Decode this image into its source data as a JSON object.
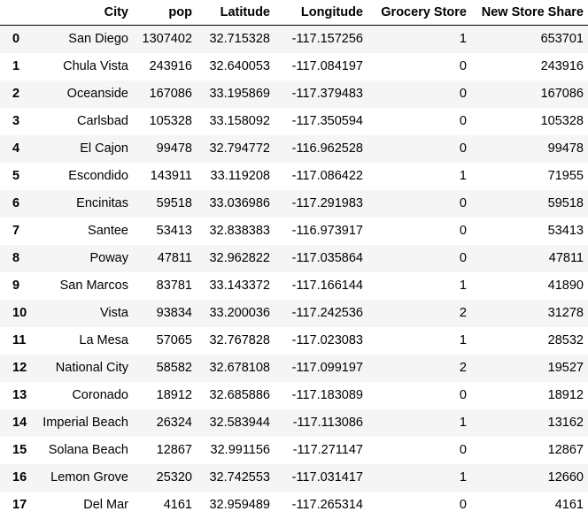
{
  "table": {
    "columns": [
      "",
      "City",
      "pop",
      "Latitude",
      "Longitude",
      "Grocery Store",
      "New Store Share"
    ],
    "rows": [
      {
        "index": "0",
        "city": "San Diego",
        "pop": "1307402",
        "lat": "32.715328",
        "lon": "-117.157256",
        "grocery": "1",
        "share": "653701"
      },
      {
        "index": "1",
        "city": "Chula Vista",
        "pop": "243916",
        "lat": "32.640053",
        "lon": "-117.084197",
        "grocery": "0",
        "share": "243916"
      },
      {
        "index": "2",
        "city": "Oceanside",
        "pop": "167086",
        "lat": "33.195869",
        "lon": "-117.379483",
        "grocery": "0",
        "share": "167086"
      },
      {
        "index": "3",
        "city": "Carlsbad",
        "pop": "105328",
        "lat": "33.158092",
        "lon": "-117.350594",
        "grocery": "0",
        "share": "105328"
      },
      {
        "index": "4",
        "city": "El Cajon",
        "pop": "99478",
        "lat": "32.794772",
        "lon": "-116.962528",
        "grocery": "0",
        "share": "99478"
      },
      {
        "index": "5",
        "city": "Escondido",
        "pop": "143911",
        "lat": "33.119208",
        "lon": "-117.086422",
        "grocery": "1",
        "share": "71955"
      },
      {
        "index": "6",
        "city": "Encinitas",
        "pop": "59518",
        "lat": "33.036986",
        "lon": "-117.291983",
        "grocery": "0",
        "share": "59518"
      },
      {
        "index": "7",
        "city": "Santee",
        "pop": "53413",
        "lat": "32.838383",
        "lon": "-116.973917",
        "grocery": "0",
        "share": "53413"
      },
      {
        "index": "8",
        "city": "Poway",
        "pop": "47811",
        "lat": "32.962822",
        "lon": "-117.035864",
        "grocery": "0",
        "share": "47811"
      },
      {
        "index": "9",
        "city": "San Marcos",
        "pop": "83781",
        "lat": "33.143372",
        "lon": "-117.166144",
        "grocery": "1",
        "share": "41890"
      },
      {
        "index": "10",
        "city": "Vista",
        "pop": "93834",
        "lat": "33.200036",
        "lon": "-117.242536",
        "grocery": "2",
        "share": "31278"
      },
      {
        "index": "11",
        "city": "La Mesa",
        "pop": "57065",
        "lat": "32.767828",
        "lon": "-117.023083",
        "grocery": "1",
        "share": "28532"
      },
      {
        "index": "12",
        "city": "National City",
        "pop": "58582",
        "lat": "32.678108",
        "lon": "-117.099197",
        "grocery": "2",
        "share": "19527"
      },
      {
        "index": "13",
        "city": "Coronado",
        "pop": "18912",
        "lat": "32.685886",
        "lon": "-117.183089",
        "grocery": "0",
        "share": "18912"
      },
      {
        "index": "14",
        "city": "Imperial Beach",
        "pop": "26324",
        "lat": "32.583944",
        "lon": "-117.113086",
        "grocery": "1",
        "share": "13162"
      },
      {
        "index": "15",
        "city": "Solana Beach",
        "pop": "12867",
        "lat": "32.991156",
        "lon": "-117.271147",
        "grocery": "0",
        "share": "12867"
      },
      {
        "index": "16",
        "city": "Lemon Grove",
        "pop": "25320",
        "lat": "32.742553",
        "lon": "-117.031417",
        "grocery": "1",
        "share": "12660"
      },
      {
        "index": "17",
        "city": "Del Mar",
        "pop": "4161",
        "lat": "32.959489",
        "lon": "-117.265314",
        "grocery": "0",
        "share": "4161"
      }
    ]
  }
}
